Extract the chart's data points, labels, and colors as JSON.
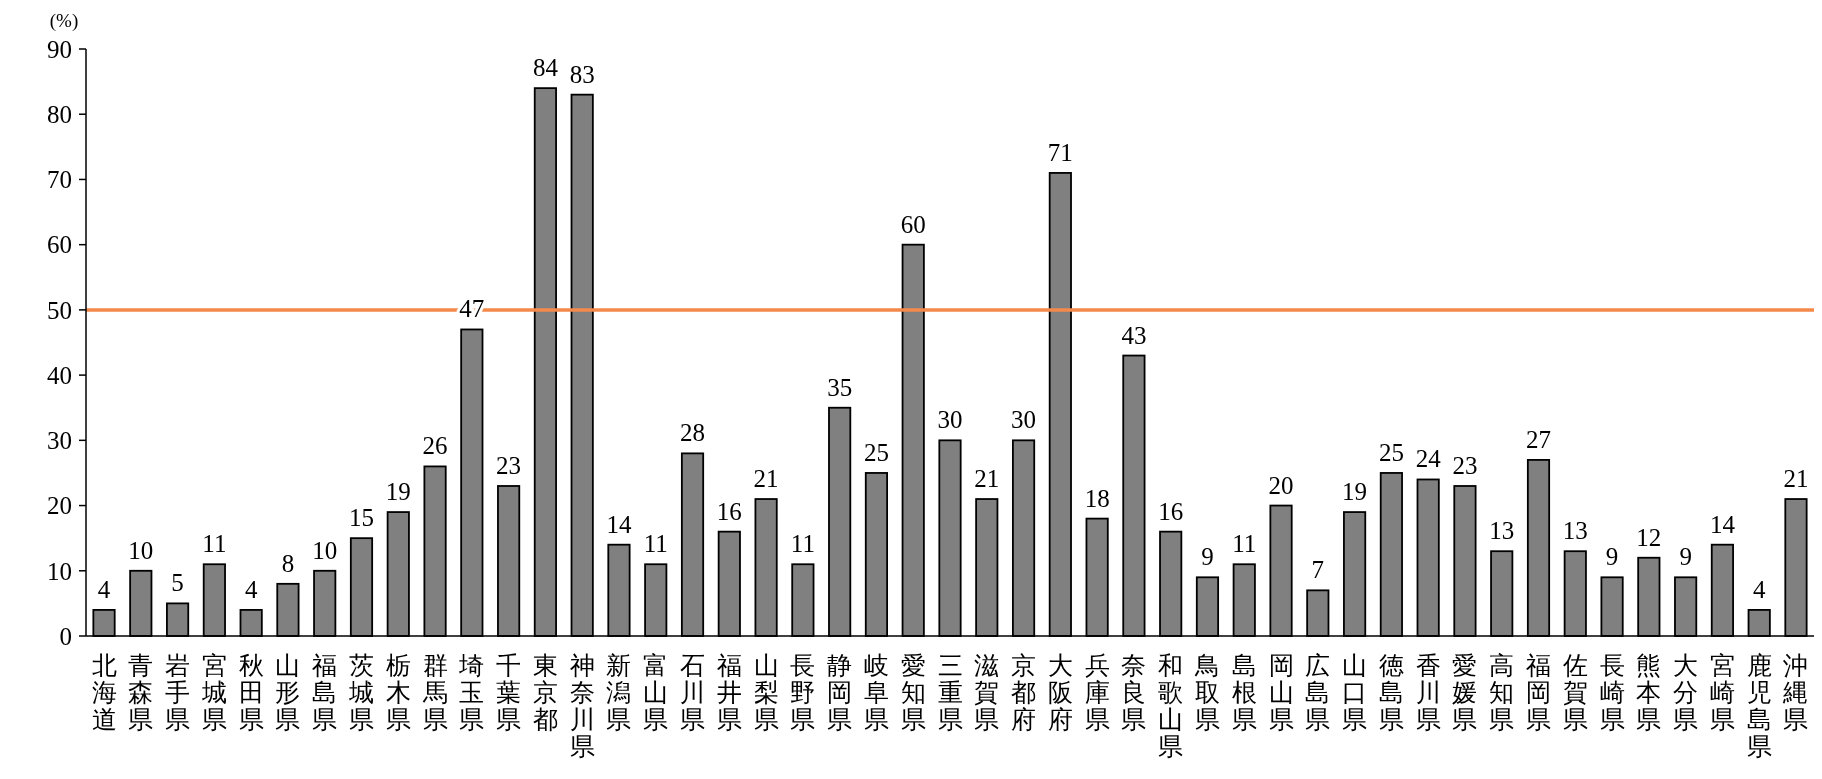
{
  "chart_data": {
    "type": "bar",
    "ylabel": "(%)",
    "categories": [
      "北海道",
      "青森県",
      "岩手県",
      "宮城県",
      "秋田県",
      "山形県",
      "福島県",
      "茨城県",
      "栃木県",
      "群馬県",
      "埼玉県",
      "千葉県",
      "東京都",
      "神奈川県",
      "新潟県",
      "富山県",
      "石川県",
      "福井県",
      "山梨県",
      "長野県",
      "静岡県",
      "岐阜県",
      "愛知県",
      "三重県",
      "滋賀県",
      "京都府",
      "大阪府",
      "兵庫県",
      "奈良県",
      "和歌山県",
      "鳥取県",
      "島根県",
      "岡山県",
      "広島県",
      "山口県",
      "徳島県",
      "香川県",
      "愛媛県",
      "高知県",
      "福岡県",
      "佐賀県",
      "長崎県",
      "熊本県",
      "大分県",
      "宮崎県",
      "鹿児島県",
      "沖縄県"
    ],
    "values": [
      4,
      10,
      5,
      11,
      4,
      8,
      10,
      15,
      19,
      26,
      47,
      23,
      84,
      83,
      14,
      11,
      28,
      16,
      21,
      11,
      35,
      25,
      60,
      30,
      21,
      30,
      71,
      18,
      43,
      16,
      9,
      11,
      20,
      7,
      19,
      25,
      24,
      23,
      13,
      27,
      13,
      9,
      12,
      9,
      14,
      4,
      21
    ],
    "color": "#808080",
    "data_labels": true,
    "ylim": [
      0,
      90
    ],
    "yticks": [
      0,
      10,
      20,
      30,
      40,
      50,
      60,
      70,
      80,
      90
    ],
    "grid": false,
    "ref_lines": [
      {
        "axis": "y",
        "value": 50,
        "color": "#f4894b"
      }
    ]
  }
}
